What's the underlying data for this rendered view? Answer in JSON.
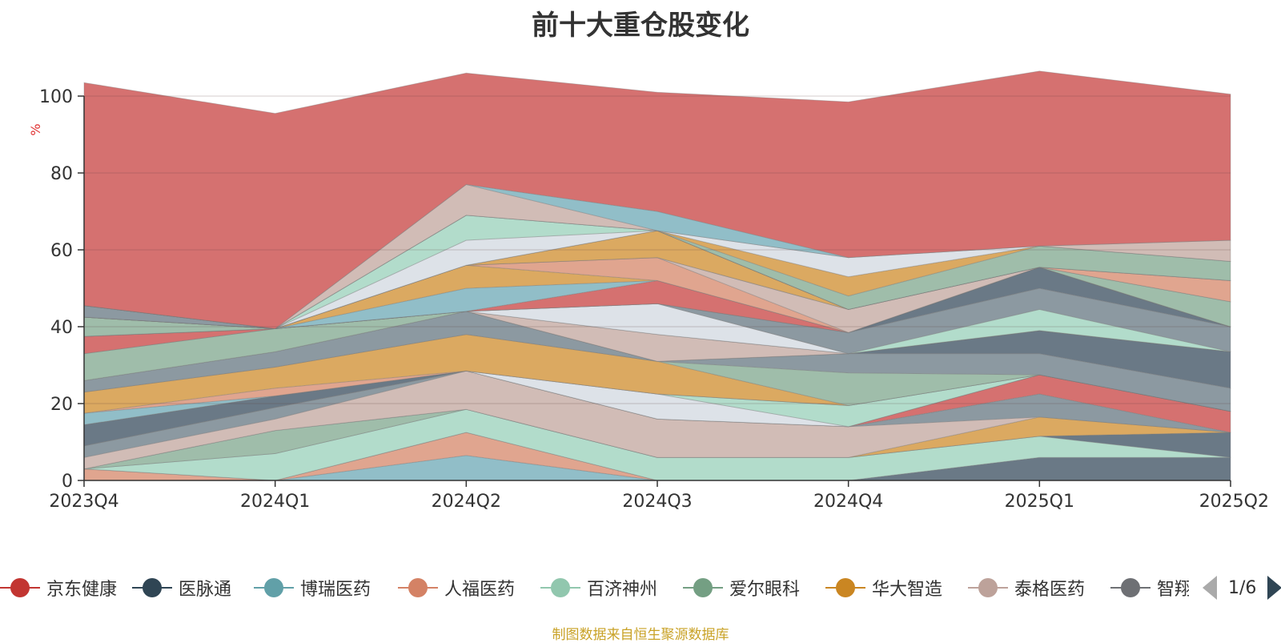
{
  "title": "前十大重仓股变化",
  "source_note": "制图数据来自恒生聚源数据库",
  "legend": {
    "items": [
      {
        "name": "京东健康",
        "color": "#c23531"
      },
      {
        "name": "医脉通",
        "color": "#2f4554"
      },
      {
        "name": "博瑞医药",
        "color": "#61a0a8"
      },
      {
        "name": "人福医药",
        "color": "#d48265"
      },
      {
        "name": "百济神州",
        "color": "#91c7ae"
      },
      {
        "name": "爱尔眼科",
        "color": "#749f83"
      },
      {
        "name": "华大智造",
        "color": "#ca8622"
      },
      {
        "name": "泰格医药",
        "color": "#bda29a"
      },
      {
        "name": "智翔",
        "color": "#6e7074"
      }
    ],
    "page": "1/6"
  },
  "chart_data": {
    "type": "area",
    "stacked": true,
    "categories": [
      "2023Q4",
      "2024Q1",
      "2024Q2",
      "2024Q3",
      "2024Q4",
      "2025Q1",
      "2025Q2"
    ],
    "ylabel": "%",
    "ylim": [
      0,
      100
    ],
    "yticks": [
      0,
      20,
      40,
      60,
      80,
      100
    ],
    "grid": true,
    "layers": [
      {
        "color": "#91bec8",
        "values": [
          0,
          0,
          6.5,
          0,
          0,
          0,
          0
        ]
      },
      {
        "color": "#e0a58f",
        "values": [
          3,
          0,
          6,
          0,
          0,
          0,
          0
        ]
      },
      {
        "color": "#6a7986",
        "values": [
          0,
          0,
          0,
          0,
          0,
          6,
          6
        ]
      },
      {
        "color": "#b2dccb",
        "values": [
          0,
          7,
          6,
          6,
          6,
          5.5,
          0
        ]
      },
      {
        "color": "#6a7986",
        "values": [
          0,
          0,
          0,
          0,
          0,
          0,
          6.5
        ]
      },
      {
        "color": "#9fbdaa",
        "values": [
          0,
          6,
          0,
          0,
          0,
          0,
          0
        ]
      },
      {
        "color": "#dba961",
        "values": [
          0,
          0,
          0,
          0,
          0,
          5,
          0
        ]
      },
      {
        "color": "#d1bcb6",
        "values": [
          3,
          3,
          10,
          10,
          8,
          0,
          0
        ]
      },
      {
        "color": "#8c99a1",
        "values": [
          3,
          3,
          0,
          0,
          0,
          6,
          0
        ]
      },
      {
        "color": "#d57170",
        "values": [
          0,
          0,
          0,
          0,
          0,
          5,
          5.5
        ]
      },
      {
        "color": "#6a7986",
        "values": [
          5.5,
          3,
          0,
          0,
          0,
          0,
          0
        ]
      },
      {
        "color": "#dde2e8",
        "values": [
          0,
          0,
          0,
          6.5,
          0,
          0,
          0
        ]
      },
      {
        "color": "#b2dccb",
        "values": [
          0,
          0,
          0,
          0,
          5.5,
          0,
          0
        ]
      },
      {
        "color": "#91bec8",
        "values": [
          3,
          0,
          0,
          0,
          0,
          0,
          0
        ]
      },
      {
        "color": "#e0a58f",
        "values": [
          0,
          2,
          0,
          0,
          0,
          0,
          0
        ]
      },
      {
        "color": "#dba961",
        "values": [
          5.5,
          5.5,
          9.5,
          8.5,
          0,
          0,
          0
        ]
      },
      {
        "color": "#9fbdaa",
        "values": [
          0,
          0,
          0,
          0,
          8.5,
          0,
          0
        ]
      },
      {
        "color": "#8c99a1",
        "values": [
          3,
          4,
          6,
          0,
          5,
          5.5,
          6
        ]
      },
      {
        "color": "#6a7986",
        "values": [
          0,
          0,
          0,
          0,
          0,
          6,
          9.5
        ]
      },
      {
        "color": "#9fbdaa",
        "values": [
          7,
          6,
          0,
          0,
          0,
          0,
          0
        ]
      },
      {
        "color": "#d1bcb6",
        "values": [
          0,
          0,
          0,
          7,
          0,
          0,
          0
        ]
      },
      {
        "color": "#d57170",
        "values": [
          4.5,
          0,
          0,
          0,
          0,
          0,
          0
        ]
      },
      {
        "color": "#dde2e8",
        "values": [
          0,
          0,
          0,
          8,
          0,
          0,
          0
        ]
      },
      {
        "color": "#b2dccb",
        "values": [
          0,
          0,
          0,
          0,
          0,
          5.5,
          0
        ]
      },
      {
        "color": "#8c99a1",
        "values": [
          0,
          0,
          0,
          0,
          5.5,
          5.5,
          6.5
        ]
      },
      {
        "color": "#6a7986",
        "values": [
          0,
          0,
          0,
          0,
          0,
          5.5,
          0
        ]
      },
      {
        "color": "#9fbdaa",
        "values": [
          5,
          0,
          0,
          0,
          0,
          0,
          0
        ]
      },
      {
        "color": "#d57170",
        "values": [
          0,
          0,
          0,
          6,
          0,
          0,
          0
        ]
      },
      {
        "color": "#91bec8",
        "values": [
          0,
          0,
          6,
          0,
          0,
          0,
          0
        ]
      },
      {
        "color": "#dba961",
        "values": [
          0,
          0,
          6,
          0,
          0,
          0,
          0
        ]
      },
      {
        "color": "#e0a58f",
        "values": [
          0,
          0,
          0,
          6,
          0,
          0,
          0
        ]
      },
      {
        "color": "#d1bcb6",
        "values": [
          0,
          0,
          0,
          0,
          6,
          0,
          0
        ]
      },
      {
        "color": "#9fbdaa",
        "values": [
          0,
          0,
          0,
          0,
          0,
          0,
          6.5
        ]
      },
      {
        "color": "#dba961",
        "values": [
          0,
          0,
          0,
          7,
          0,
          0,
          0
        ]
      },
      {
        "color": "#e0a58f",
        "values": [
          0,
          0,
          0,
          0,
          0,
          0,
          5.5
        ]
      },
      {
        "color": "#8c99a1",
        "values": [
          3,
          0,
          0,
          0,
          0,
          0,
          0
        ]
      },
      {
        "color": "#dde2e8",
        "values": [
          0,
          0,
          6.5,
          0,
          0,
          0,
          0
        ]
      },
      {
        "color": "#b2dccb",
        "values": [
          0,
          0,
          6.5,
          0,
          0,
          0,
          0
        ]
      },
      {
        "color": "#9fbdaa",
        "values": [
          0,
          0,
          0,
          0,
          3.5,
          5.5,
          5
        ]
      },
      {
        "color": "#dba961",
        "values": [
          0,
          0,
          0,
          0,
          5,
          0,
          0
        ]
      },
      {
        "color": "#dde2e8",
        "values": [
          0,
          0,
          0,
          0,
          5,
          0,
          0
        ]
      },
      {
        "color": "#d1bcb6",
        "values": [
          0,
          0,
          8,
          0,
          0,
          0,
          5.5
        ]
      },
      {
        "color": "#91bec8",
        "values": [
          0,
          0,
          0,
          5,
          0,
          0,
          0
        ]
      },
      {
        "color": "#d57170",
        "values": [
          58,
          56,
          29,
          31,
          40.5,
          45.5,
          38
        ]
      }
    ]
  }
}
